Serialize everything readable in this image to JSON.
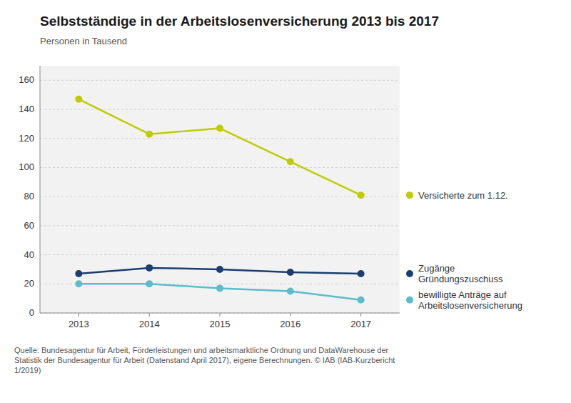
{
  "chart_data": {
    "type": "line",
    "title": "Selbstständige in der Arbeitslosenversicherung 2013 bis 2017",
    "subtitle": "Personen in Tausend",
    "source": "Quelle: Bundesagentur für Arbeit, Förderleistungen und arbeitsmarktliche Ordnung und DataWarehouse der\nStatistik der Bundesagentur für Arbeit (Datenstand April 2017), eigene Berechnungen. © IAB (IAB-Kurzbericht\n1/2019)",
    "x": [
      2013,
      2014,
      2015,
      2016,
      2017
    ],
    "xlim": [
      2012.45,
      2017.55
    ],
    "xticks": [
      2013,
      2014,
      2015,
      2016,
      2017
    ],
    "ylim": [
      0,
      170
    ],
    "yticks": [
      0,
      20,
      40,
      60,
      80,
      100,
      120,
      140,
      160
    ],
    "grid": true,
    "legend": "right",
    "marker": "circle",
    "series": [
      {
        "name": "Versicherte zum 1.12.",
        "color": "#bfcc00",
        "values": [
          147,
          123,
          127,
          104,
          81
        ]
      },
      {
        "name": "Zugänge\nGründungszuschuss",
        "color": "#1b3d6f",
        "values": [
          27,
          31,
          30,
          28,
          27
        ]
      },
      {
        "name": "bewilligte Anträge auf\nArbeitslosenversicherung",
        "color": "#5bbccc",
        "values": [
          20,
          20,
          17,
          15,
          9
        ]
      }
    ]
  }
}
